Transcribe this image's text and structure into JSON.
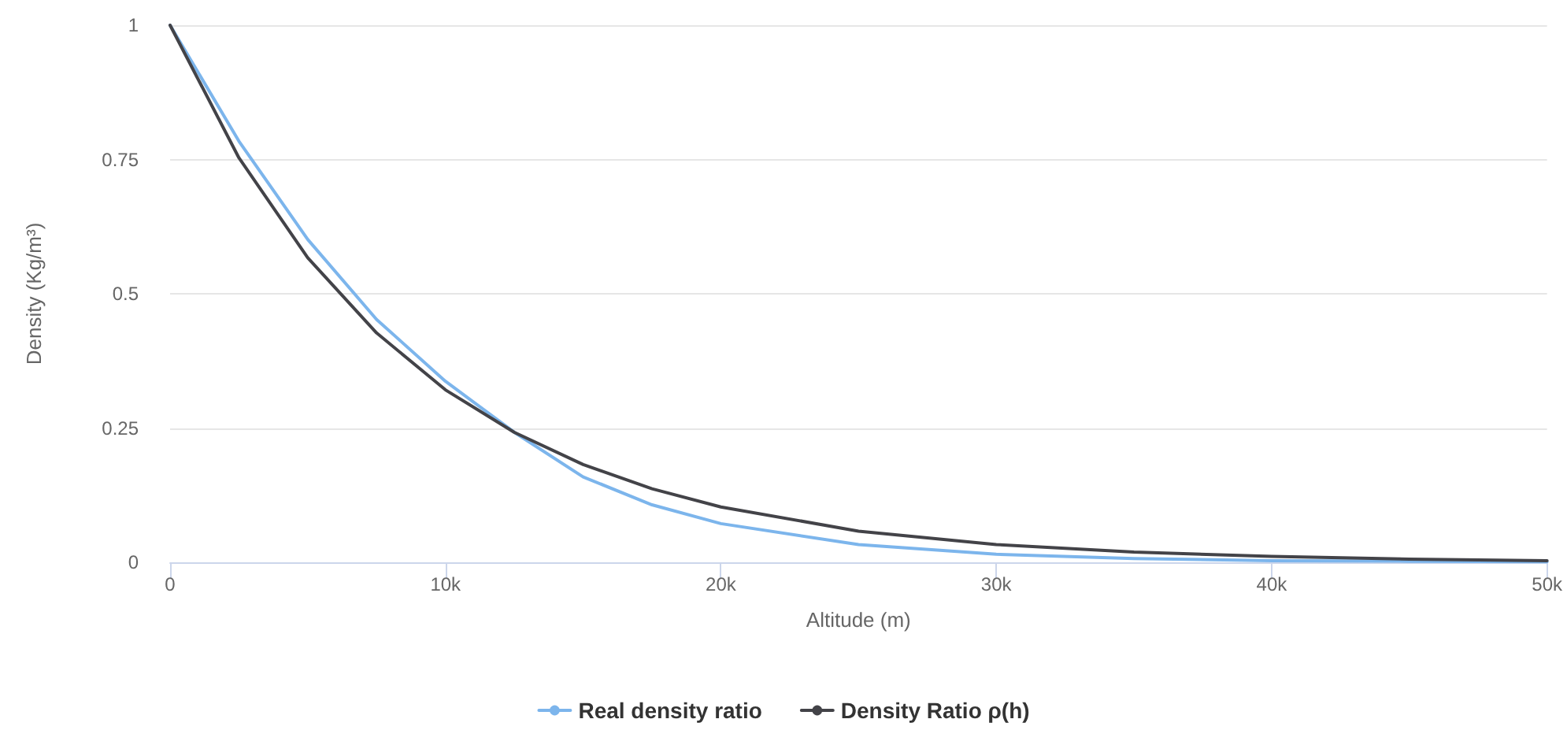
{
  "chart_data": {
    "type": "line",
    "xlabel": "Altitude (m)",
    "ylabel": "Density (Kg/m³)",
    "x": [
      0,
      2500,
      5000,
      7500,
      10000,
      12500,
      15000,
      17500,
      20000,
      25000,
      30000,
      35000,
      40000,
      45000,
      50000
    ],
    "series": [
      {
        "name": "Real density ratio",
        "color": "#7cb5ec",
        "values": [
          1,
          0.784,
          0.601,
          0.452,
          0.337,
          0.242,
          0.159,
          0.107,
          0.072,
          0.033,
          0.015,
          0.007,
          0.003,
          0.002,
          0.001
        ]
      },
      {
        "name": "Density Ratio ρ(h)",
        "color": "#434348",
        "values": [
          1,
          0.753,
          0.567,
          0.427,
          0.321,
          0.242,
          0.182,
          0.137,
          0.103,
          0.058,
          0.033,
          0.019,
          0.011,
          0.006,
          0.003
        ]
      }
    ],
    "xlim": [
      0,
      50000
    ],
    "xticks": [
      {
        "value": 0,
        "label": "0"
      },
      {
        "value": 10000,
        "label": "10k"
      },
      {
        "value": 20000,
        "label": "20k"
      },
      {
        "value": 30000,
        "label": "30k"
      },
      {
        "value": 40000,
        "label": "40k"
      },
      {
        "value": 50000,
        "label": "50k"
      }
    ],
    "ylim": [
      0,
      1
    ],
    "yticks": [
      0,
      0.25,
      0.5,
      0.75,
      1
    ],
    "grid": "y",
    "legend": "bottom",
    "marker": "none",
    "line_style": "solid"
  }
}
